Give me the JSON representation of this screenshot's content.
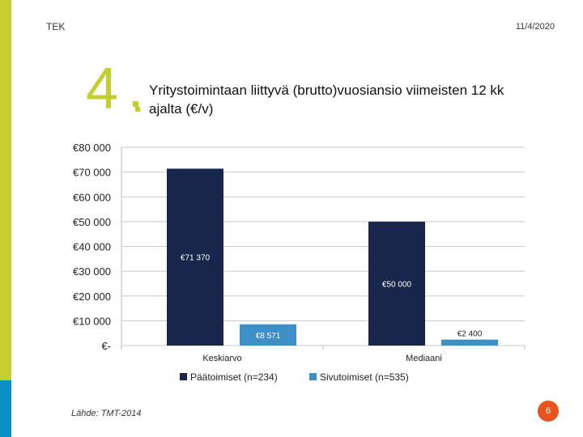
{
  "header": {
    "org": "TEK",
    "date": "11/4/2020"
  },
  "slide": {
    "number": "4",
    "title": "Yritystoimintaan liittyvä (brutto)vuosiansio viimeisten 12 kk ajalta (€/v)"
  },
  "footer": {
    "source": "Lähde: TMT-2014",
    "page": "6"
  },
  "colors": {
    "accent_green": "#c2cf2e",
    "accent_blue": "#0a8fc4",
    "page_orange": "#e9531d",
    "series_main": "#17264a",
    "series_side": "#3d8fc5"
  },
  "chart_data": {
    "type": "bar",
    "categories": [
      "Keskiarvo",
      "Mediaani"
    ],
    "series": [
      {
        "name": "Päätoimiset (n=234)",
        "values": [
          71370,
          50000
        ],
        "labels": [
          "€71 370",
          "€50 000"
        ],
        "color": "#17264a"
      },
      {
        "name": "Sivutoimiset (n=535)",
        "values": [
          8571,
          2400
        ],
        "labels": [
          "€8 571",
          "€2 400"
        ],
        "color": "#3d8fc5"
      }
    ],
    "y_ticks": [
      {
        "value": 80000,
        "label": "€80 000"
      },
      {
        "value": 70000,
        "label": "€70 000"
      },
      {
        "value": 60000,
        "label": "€60 000"
      },
      {
        "value": 50000,
        "label": "€50 000"
      },
      {
        "value": 40000,
        "label": "€40 000"
      },
      {
        "value": 30000,
        "label": "€30 000"
      },
      {
        "value": 20000,
        "label": "€20 000"
      },
      {
        "value": 10000,
        "label": "€10 000"
      },
      {
        "value": 0,
        "label": "€-"
      }
    ],
    "ylim": [
      0,
      80000
    ],
    "grid": true,
    "legend": "bottom"
  }
}
